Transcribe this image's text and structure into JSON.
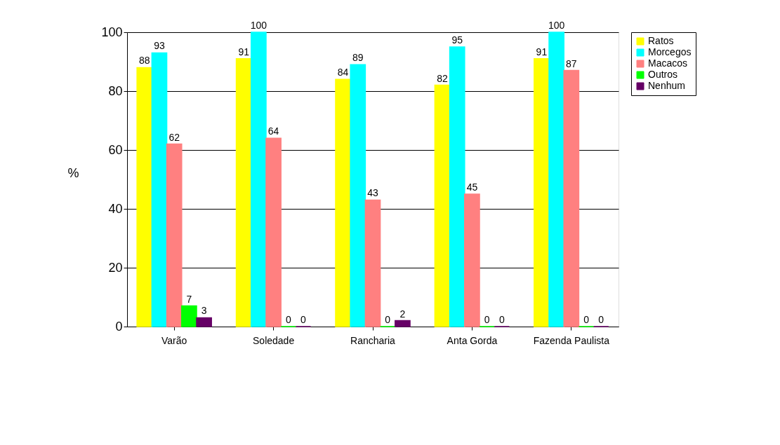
{
  "chart_data": {
    "type": "bar",
    "ylabel": "%",
    "categories": [
      "Varão",
      "Soledade",
      "Rancharia",
      "Anta Gorda",
      "Fazenda Paulista"
    ],
    "series": [
      {
        "name": "Ratos",
        "color": "#ffff00",
        "values": [
          88,
          91,
          84,
          82,
          91
        ]
      },
      {
        "name": "Morcegos",
        "color": "#00ffff",
        "values": [
          93,
          100,
          89,
          95,
          100
        ]
      },
      {
        "name": "Macacos",
        "color": "#ff8080",
        "values": [
          62,
          64,
          43,
          45,
          87
        ]
      },
      {
        "name": "Outros",
        "color": "#00ff00",
        "values": [
          7,
          0,
          0,
          0,
          0
        ]
      },
      {
        "name": "Nenhum",
        "color": "#660066",
        "values": [
          3,
          0,
          2,
          0,
          0
        ]
      }
    ],
    "ylim": [
      0,
      100
    ],
    "yticks": [
      0,
      20,
      40,
      60,
      80,
      100
    ],
    "grid": "y",
    "legend": "right",
    "data_labels": true
  }
}
